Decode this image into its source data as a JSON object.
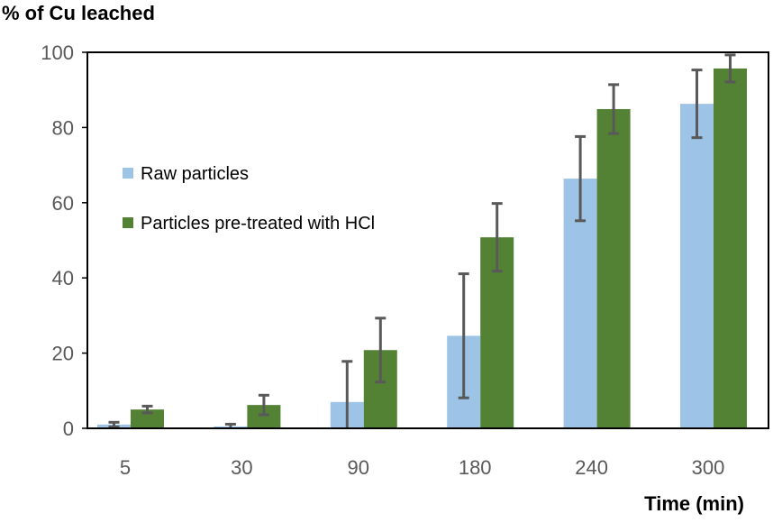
{
  "chart_data": {
    "type": "bar",
    "title": "% of Cu leached",
    "xlabel": "Time (min)",
    "ylabel": "",
    "ylim": [
      0,
      100
    ],
    "yticks": [
      "0",
      "20",
      "40",
      "60",
      "80",
      "100"
    ],
    "categories": [
      "5",
      "30",
      "90",
      "180",
      "240",
      "300"
    ],
    "grid": false,
    "legend_position": "left-middle",
    "series": [
      {
        "name": "Raw particles",
        "color": "#9DC3E6",
        "values": [
          1.0,
          0.5,
          7.0,
          24.6,
          66.4,
          86.3
        ],
        "errors": [
          0.6,
          0.6,
          10.8,
          16.5,
          11.2,
          9.0
        ]
      },
      {
        "name": "Particles pre-treated with HCl",
        "color": "#548235",
        "values": [
          5.0,
          6.2,
          20.8,
          50.8,
          84.9,
          95.7
        ],
        "errors": [
          0.9,
          2.6,
          8.5,
          9.0,
          6.5,
          3.6
        ]
      }
    ]
  }
}
